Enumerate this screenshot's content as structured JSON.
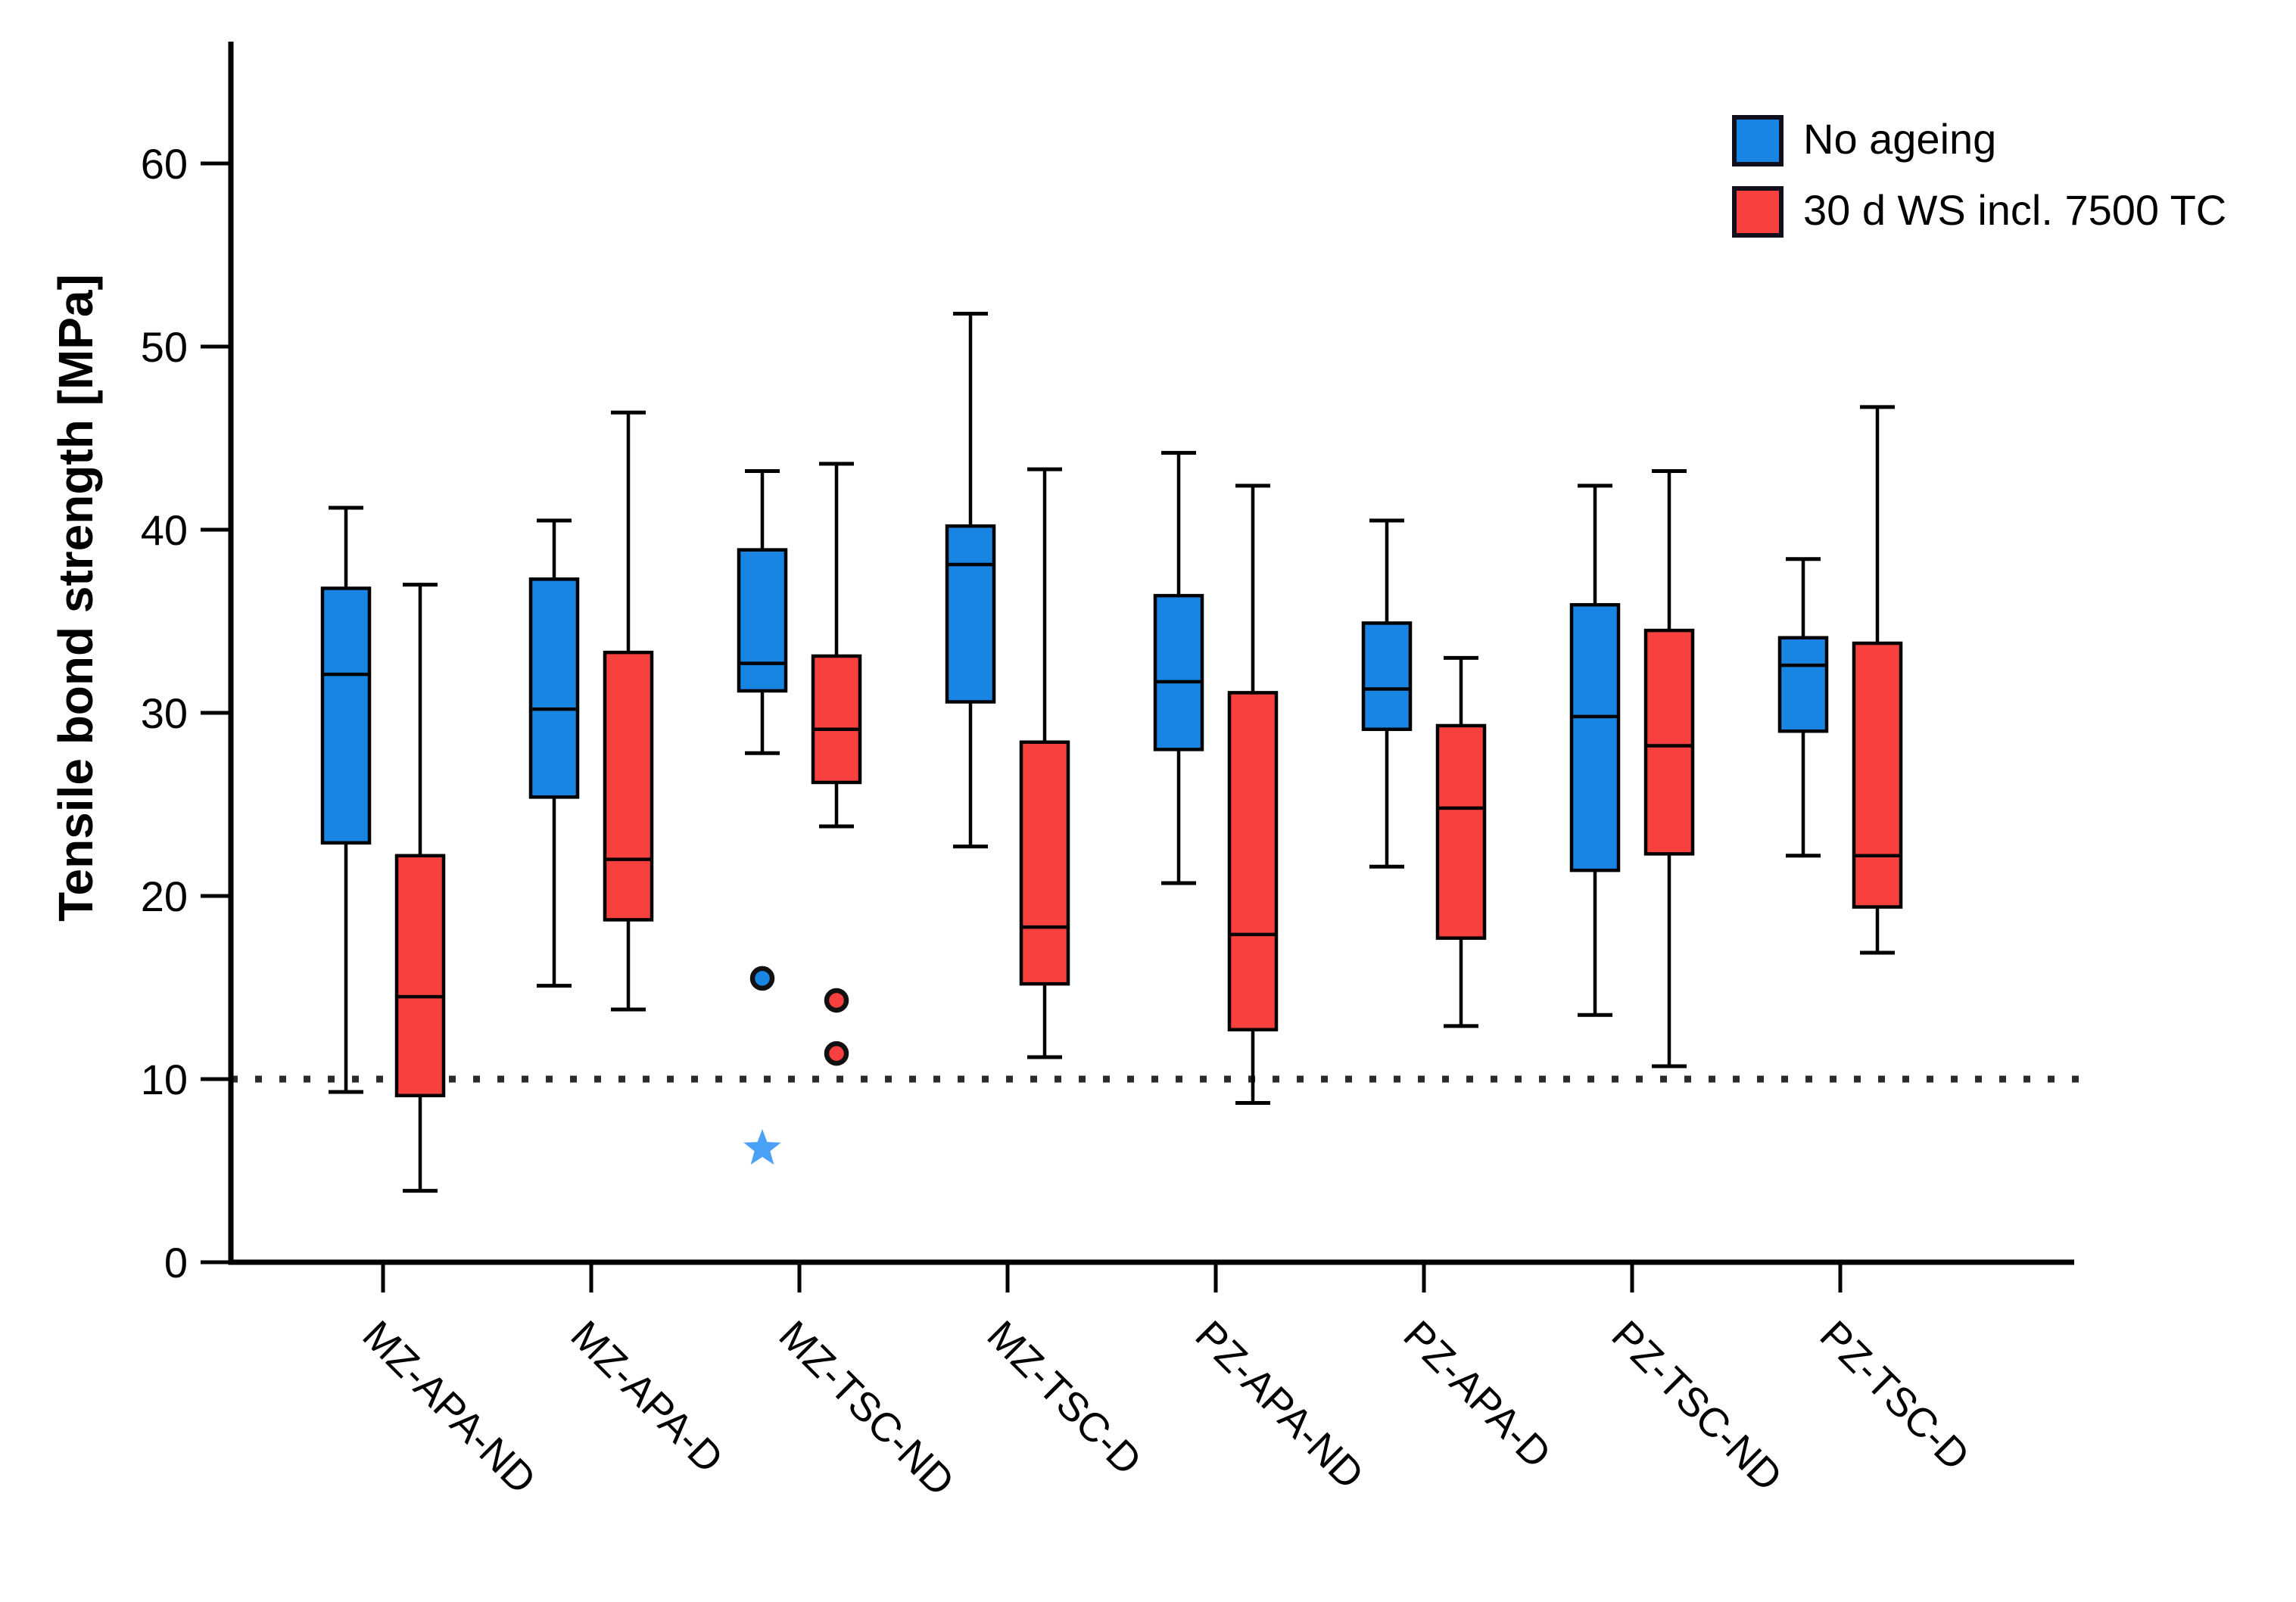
{
  "figure": {
    "background": "#ffffff",
    "axis_color": "#000000",
    "reference_line_color": "#2b2b2b"
  },
  "legend": {
    "position": "top-right",
    "items": [
      {
        "label": "No ageing",
        "color": "#1985E3"
      },
      {
        "label": "30 d WS incl. 7500 TC",
        "color": "#F8413E"
      }
    ]
  },
  "chart_data": {
    "type": "boxplot",
    "title": "",
    "xlabel": "",
    "ylabel": "Tensile bond strength [MPa]",
    "ylim": [
      0,
      66.5
    ],
    "yticks": [
      0,
      10,
      20,
      30,
      40,
      50,
      60
    ],
    "reference_line_y": 10,
    "grid": false,
    "legend_position": "top-right",
    "categories": [
      "MZ-APA-ND",
      "MZ-APA-D",
      "MZ-TSC-ND",
      "MZ-TSC-D",
      "PZ-APA-ND",
      "PZ-APA-D",
      "PZ-TSC-ND",
      "PZ-TSC-D"
    ],
    "series": [
      {
        "name": "No ageing",
        "color": "#1985E3",
        "outlier_star_color": "#4AA1F8",
        "boxes": [
          {
            "low": 9.3,
            "q1": 22.9,
            "median": 32.1,
            "q3": 36.8,
            "high": 41.2,
            "outlier_circles": [],
            "outlier_stars": []
          },
          {
            "low": 15.1,
            "q1": 25.4,
            "median": 30.2,
            "q3": 37.3,
            "high": 40.5,
            "outlier_circles": [],
            "outlier_stars": []
          },
          {
            "low": 27.8,
            "q1": 31.2,
            "median": 32.7,
            "q3": 38.9,
            "high": 43.2,
            "outlier_circles": [
              15.5
            ],
            "outlier_stars": [
              6.2
            ]
          },
          {
            "low": 22.7,
            "q1": 30.6,
            "median": 38.1,
            "q3": 40.2,
            "high": 51.8,
            "outlier_circles": [],
            "outlier_stars": []
          },
          {
            "low": 20.7,
            "q1": 28.0,
            "median": 31.7,
            "q3": 36.4,
            "high": 44.2,
            "outlier_circles": [],
            "outlier_stars": []
          },
          {
            "low": 21.6,
            "q1": 29.1,
            "median": 31.3,
            "q3": 34.9,
            "high": 40.5,
            "outlier_circles": [],
            "outlier_stars": []
          },
          {
            "low": 13.5,
            "q1": 21.4,
            "median": 29.8,
            "q3": 35.9,
            "high": 42.4,
            "outlier_circles": [],
            "outlier_stars": []
          },
          {
            "low": 22.2,
            "q1": 29.0,
            "median": 32.6,
            "q3": 34.1,
            "high": 38.4,
            "outlier_circles": [],
            "outlier_stars": []
          }
        ]
      },
      {
        "name": "30 d WS incl. 7500 TC",
        "color": "#F8413E",
        "outlier_star_color": "#F8413E",
        "boxes": [
          {
            "low": 3.9,
            "q1": 9.1,
            "median": 14.5,
            "q3": 22.2,
            "high": 37.0,
            "outlier_circles": [],
            "outlier_stars": []
          },
          {
            "low": 13.8,
            "q1": 18.7,
            "median": 22.0,
            "q3": 33.3,
            "high": 46.4,
            "outlier_circles": [],
            "outlier_stars": []
          },
          {
            "low": 23.8,
            "q1": 26.2,
            "median": 29.1,
            "q3": 33.1,
            "high": 43.6,
            "outlier_circles": [
              14.3,
              11.4
            ],
            "outlier_stars": []
          },
          {
            "low": 11.2,
            "q1": 15.2,
            "median": 18.3,
            "q3": 28.4,
            "high": 43.3,
            "outlier_circles": [],
            "outlier_stars": []
          },
          {
            "low": 8.7,
            "q1": 12.7,
            "median": 17.9,
            "q3": 31.1,
            "high": 42.4,
            "outlier_circles": [],
            "outlier_stars": []
          },
          {
            "low": 12.9,
            "q1": 17.7,
            "median": 24.8,
            "q3": 29.3,
            "high": 33.0,
            "outlier_circles": [],
            "outlier_stars": []
          },
          {
            "low": 10.7,
            "q1": 22.3,
            "median": 28.2,
            "q3": 34.5,
            "high": 43.2,
            "outlier_circles": [],
            "outlier_stars": []
          },
          {
            "low": 16.9,
            "q1": 19.4,
            "median": 22.2,
            "q3": 33.8,
            "high": 46.7,
            "outlier_circles": [],
            "outlier_stars": []
          }
        ]
      }
    ]
  }
}
